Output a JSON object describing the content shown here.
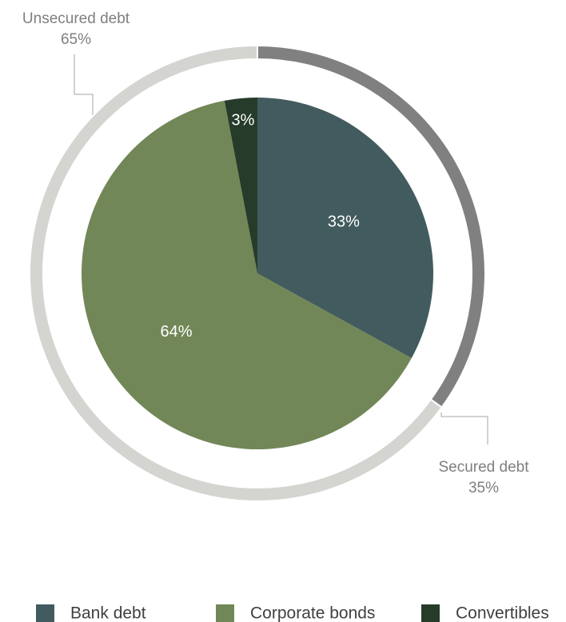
{
  "chart_data": [
    {
      "type": "pie",
      "categories": [
        "Bank debt",
        "Corporate bonds",
        "Convertibles"
      ],
      "values": [
        33,
        64,
        3
      ],
      "value_labels": [
        "33%",
        "64%",
        "3%"
      ],
      "colors": [
        "#425b5e",
        "#728757",
        "#263b2a"
      ],
      "legend": "bottom"
    },
    {
      "type": "donut",
      "categories": [
        "Secured debt",
        "Unsecured debt"
      ],
      "values": [
        35,
        65
      ],
      "value_labels": [
        "35%",
        "65%"
      ],
      "colors": [
        "#808080",
        "#d4d5d1"
      ]
    }
  ]
}
